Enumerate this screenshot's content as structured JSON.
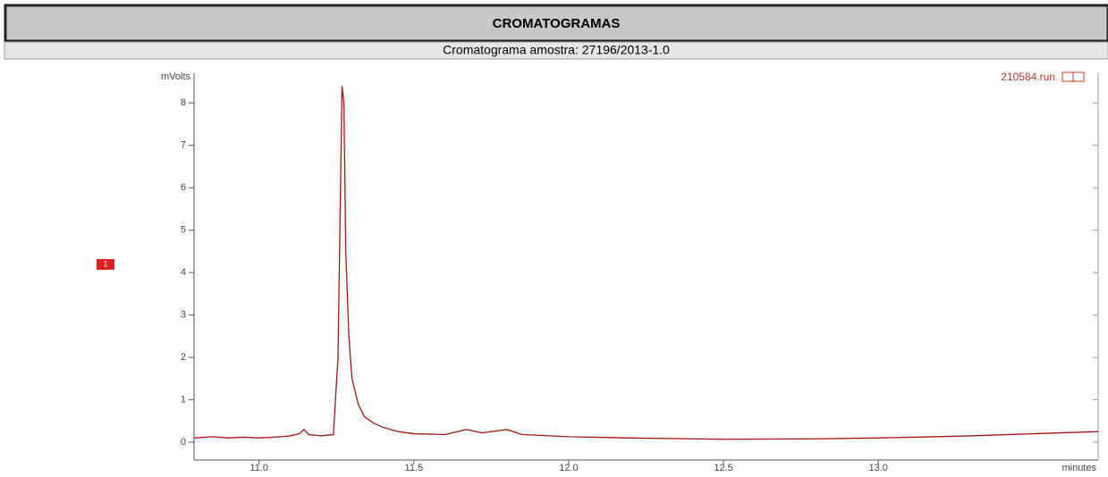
{
  "chart_data": {
    "type": "line",
    "title": "CROMATOGRAMAS",
    "subtitle": "Cromatograma amostra: 27196/2013-1.0",
    "y_label": "mVolts",
    "x_label": "minutes",
    "run_label": "210584.run",
    "peak_label": "1",
    "x": [
      10.79,
      10.85,
      10.9,
      10.95,
      11.0,
      11.05,
      11.1,
      11.13,
      11.145,
      11.16,
      11.2,
      11.24,
      11.255,
      11.263,
      11.268,
      11.274,
      11.28,
      11.29,
      11.3,
      11.32,
      11.34,
      11.37,
      11.4,
      11.45,
      11.5,
      11.6,
      11.67,
      11.72,
      11.8,
      11.85,
      12.0,
      12.2,
      12.5,
      12.8,
      13.0,
      13.3,
      13.5,
      13.71
    ],
    "series": [
      {
        "name": "210584.run",
        "color": "#a31515",
        "values": [
          0.1,
          0.13,
          0.1,
          0.12,
          0.1,
          0.12,
          0.15,
          0.2,
          0.3,
          0.18,
          0.15,
          0.18,
          2.0,
          6.0,
          8.4,
          8.0,
          4.5,
          2.5,
          1.5,
          0.9,
          0.6,
          0.45,
          0.35,
          0.25,
          0.2,
          0.18,
          0.3,
          0.22,
          0.3,
          0.18,
          0.13,
          0.1,
          0.07,
          0.08,
          0.1,
          0.15,
          0.2,
          0.25
        ]
      }
    ],
    "xlim": [
      10.79,
      13.71
    ],
    "ylim": [
      -0.42,
      8.7
    ],
    "xticks": [
      {
        "value": 11,
        "label": "11.0"
      },
      11.5,
      {
        "value": 12,
        "label": "12.0"
      },
      12.5,
      {
        "value": 13,
        "label": "13.0"
      }
    ],
    "yticks": [
      0,
      1,
      2,
      3,
      4,
      5,
      6,
      7,
      8
    ]
  }
}
